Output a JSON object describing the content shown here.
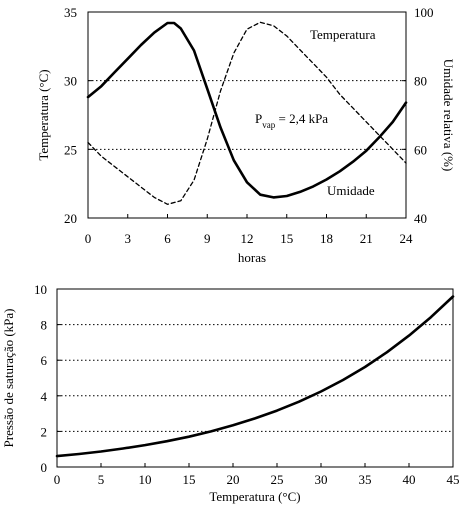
{
  "chart_data": [
    {
      "type": "line",
      "xlabel": "horas",
      "ylabel": "Temperatura (°C)",
      "y2label": "Umidade relativa (%)",
      "xlim": [
        0,
        24
      ],
      "ylim": [
        20,
        35
      ],
      "y2lim": [
        40,
        100
      ],
      "xticks": [
        "0",
        "3",
        "6",
        "9",
        "12",
        "15",
        "18",
        "21",
        "24"
      ],
      "yticks": [
        "20",
        "25",
        "30",
        "35"
      ],
      "y2ticks": [
        "40",
        "60",
        "80",
        "100"
      ],
      "grid_y_dotted": [
        25,
        30
      ],
      "annotation": {
        "pre": "P",
        "sub": "vap",
        "post": " = 2,4 kPa"
      },
      "series": [
        {
          "name": "Temperatura",
          "axis": "left",
          "style": "solid",
          "x": [
            0,
            1,
            2,
            3,
            4,
            5,
            6,
            6.5,
            7,
            8,
            9,
            10,
            11,
            12,
            13,
            14,
            15,
            16,
            17,
            18,
            19,
            20,
            21,
            22,
            23,
            24
          ],
          "y": [
            28.8,
            29.6,
            30.6,
            31.6,
            32.6,
            33.5,
            34.2,
            34.2,
            33.8,
            32.2,
            29.4,
            26.6,
            24.2,
            22.6,
            21.7,
            21.5,
            21.6,
            21.9,
            22.3,
            22.8,
            23.4,
            24.1,
            24.9,
            25.9,
            27.0,
            28.4
          ]
        },
        {
          "name": "Umidade",
          "axis": "right",
          "style": "dashed",
          "x": [
            0,
            1,
            2,
            3,
            4,
            5,
            6,
            7,
            8,
            9,
            10,
            11,
            12,
            13,
            14,
            15,
            16,
            17,
            18,
            19,
            20,
            21,
            22,
            23,
            24
          ],
          "y": [
            62,
            58,
            55,
            52,
            49,
            46,
            44,
            45,
            51,
            63,
            77,
            88,
            95,
            97,
            96,
            93,
            89,
            85,
            81,
            76,
            72,
            68,
            64,
            60,
            56
          ]
        }
      ]
    },
    {
      "type": "line",
      "xlabel": "Temperatura (°C)",
      "ylabel": "Pressão de saturação (kPa)",
      "xlim": [
        0,
        45
      ],
      "ylim": [
        0,
        10
      ],
      "xticks": [
        "0",
        "5",
        "10",
        "15",
        "20",
        "25",
        "30",
        "35",
        "40",
        "45"
      ],
      "yticks": [
        "0",
        "2",
        "4",
        "6",
        "8",
        "10"
      ],
      "grid_y_dotted": [
        2,
        4,
        6,
        8
      ],
      "series": [
        {
          "style": "solid",
          "x": [
            0,
            2.5,
            5,
            7.5,
            10,
            12.5,
            15,
            17.5,
            20,
            22.5,
            25,
            27.5,
            30,
            32.5,
            35,
            37.5,
            40,
            42.5,
            45
          ],
          "y": [
            0.61,
            0.73,
            0.87,
            1.04,
            1.23,
            1.45,
            1.7,
            2.0,
            2.34,
            2.73,
            3.17,
            3.67,
            4.24,
            4.89,
            5.62,
            6.45,
            7.38,
            8.42,
            9.58
          ]
        }
      ]
    }
  ]
}
